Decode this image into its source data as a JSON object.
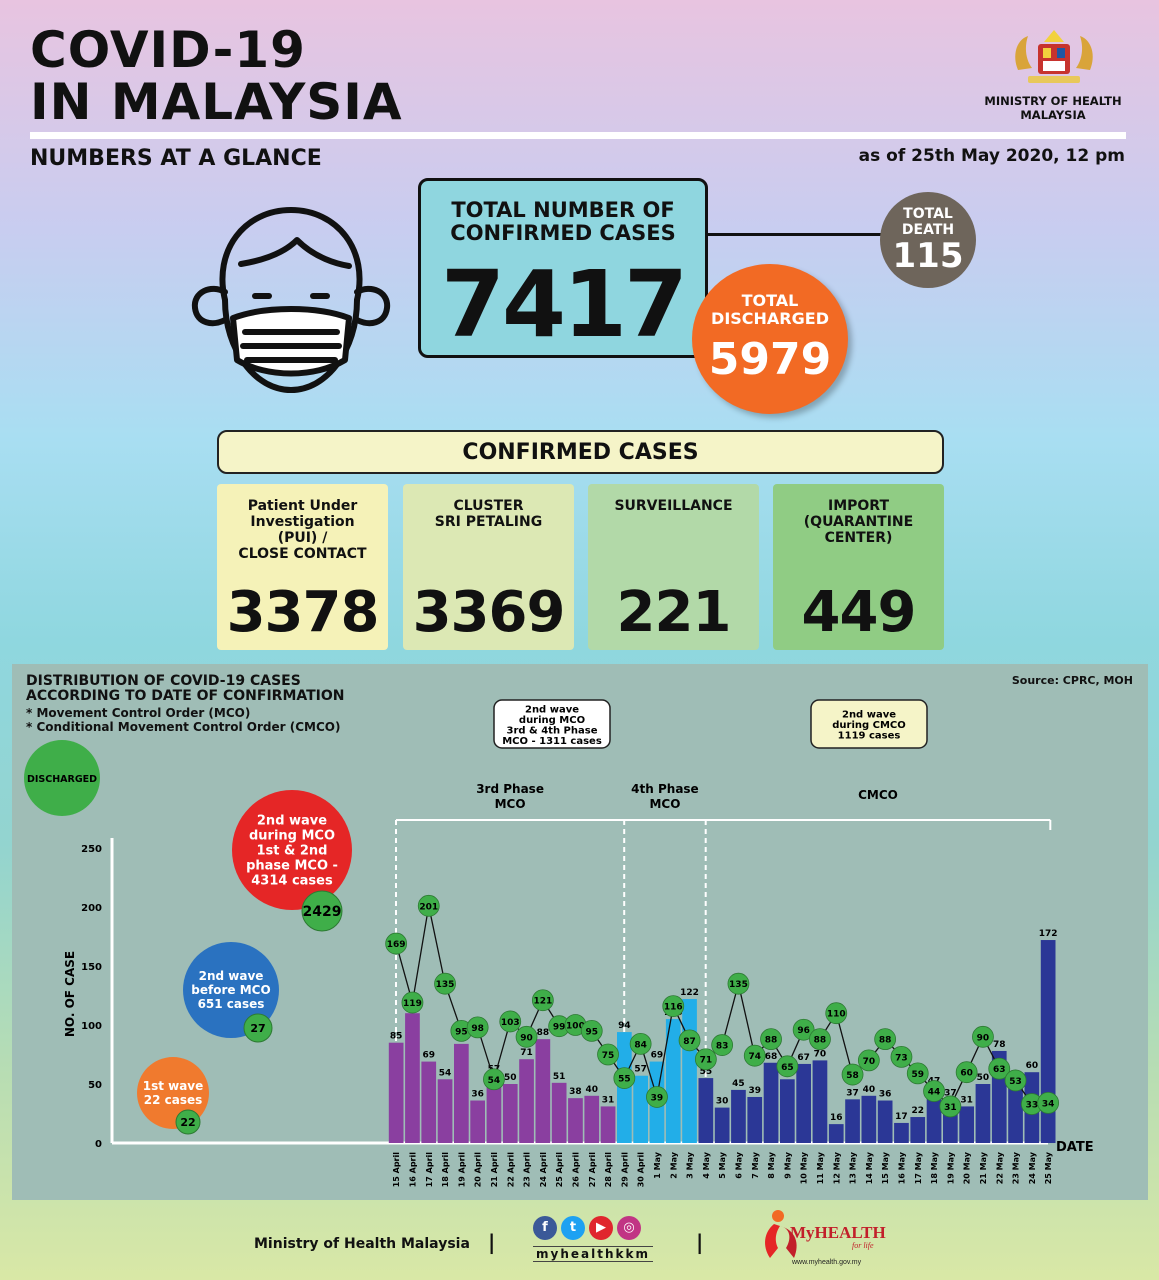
{
  "header": {
    "title_line1": "COVID-19",
    "title_line2": "IN MALAYSIA",
    "subtitle": "NUMBERS AT A GLANCE",
    "as_of": "as of 25th May 2020, 12 pm",
    "ministry_line1": "MINISTRY OF HEALTH",
    "ministry_line2": "MALAYSIA"
  },
  "icons": {
    "crest": "malaysia-coat-of-arms-icon",
    "face": "face-mask-icon"
  },
  "totals": {
    "confirmed_label_line1": "TOTAL NUMBER OF",
    "confirmed_label_line2": "CONFIRMED CASES",
    "confirmed": "7417",
    "death_label_line1": "TOTAL",
    "death_label_line2": "DEATH",
    "death": "115",
    "discharged_label_line1": "TOTAL",
    "discharged_label_line2": "DISCHARGED",
    "discharged": "5979"
  },
  "confirmed_cases": {
    "heading": "CONFIRMED CASES",
    "categories": [
      {
        "label_lines": [
          "Patient Under",
          "Investigation",
          "(PUI) /",
          "CLOSE CONTACT"
        ],
        "value": "3378",
        "color": "#f5f2b8"
      },
      {
        "label_lines": [
          "CLUSTER",
          "SRI PETALING"
        ],
        "value": "3369",
        "color": "#dce8b4"
      },
      {
        "label_lines": [
          "SURVEILLANCE"
        ],
        "value": "221",
        "color": "#b2d9a8"
      },
      {
        "label_lines": [
          "IMPORT",
          "(QUARANTINE",
          "CENTER)"
        ],
        "value": "449",
        "color": "#90cc84"
      }
    ]
  },
  "colors": {
    "phase3": "#8a3fa0",
    "phase4": "#22aee8",
    "cmco": "#2b3796",
    "discharged": "#3fae49",
    "wave2mco": "#e52626",
    "wave2before": "#2a72c0",
    "wave1": "#f07a2e"
  },
  "chart_data": {
    "type": "bar",
    "title_line1": "DISTRIBUTION OF COVID-19 CASES",
    "title_line2": "ACCORDING TO DATE OF CONFIRMATION",
    "notes": [
      "* Movement Control Order (MCO)",
      "* Conditional Movement Control Order (CMCO)"
    ],
    "source": "Source: CPRC, MOH",
    "ylabel": "NO. OF CASE",
    "xlabel": "DATE",
    "ylim": [
      0,
      250
    ],
    "yticks": [
      0,
      50,
      100,
      150,
      200,
      250
    ],
    "grid": false,
    "legend_discharged": "DISCHARGED",
    "categories": [
      "15 April",
      "16 April",
      "17 April",
      "18 April",
      "19 April",
      "20 April",
      "21 April",
      "22 April",
      "23 April",
      "24 April",
      "25 April",
      "26 April",
      "27 April",
      "28 April",
      "29 April",
      "30 April",
      "1 May",
      "2 May",
      "3 May",
      "4 May",
      "5 May",
      "6 May",
      "7 May",
      "8 May",
      "9 May",
      "10 May",
      "11 May",
      "12 May",
      "13 May",
      "14 May",
      "15 May",
      "16 May",
      "17 May",
      "18 May",
      "19 May",
      "20 May",
      "21 May",
      "22 May",
      "23 May",
      "24 May",
      "25 May"
    ],
    "series": [
      {
        "name": "Confirmed cases",
        "values": [
          85,
          110,
          69,
          54,
          84,
          36,
          57,
          50,
          71,
          88,
          51,
          38,
          40,
          31,
          94,
          57,
          69,
          105,
          122,
          55,
          30,
          45,
          39,
          68,
          54,
          67,
          70,
          16,
          37,
          40,
          36,
          17,
          22,
          47,
          37,
          31,
          50,
          78,
          48,
          60,
          172
        ]
      },
      {
        "name": "DISCHARGED",
        "values": [
          169,
          119,
          201,
          135,
          95,
          98,
          54,
          103,
          90,
          121,
          99,
          100,
          95,
          75,
          55,
          84,
          39,
          116,
          87,
          71,
          83,
          135,
          74,
          88,
          65,
          96,
          88,
          110,
          58,
          70,
          88,
          73,
          59,
          44,
          31,
          60,
          90,
          63,
          53,
          33,
          34
        ]
      }
    ],
    "phases": [
      {
        "label_line1": "3rd Phase",
        "label_line2": "MCO",
        "from": "15 April",
        "to": "28 April"
      },
      {
        "label_line1": "4th Phase",
        "label_line2": "MCO",
        "from": "29 April",
        "to": "3 May"
      },
      {
        "label_line1": "CMCO",
        "label_line2": "",
        "from": "4 May",
        "to": "25 May"
      }
    ],
    "wave_boxes": [
      {
        "lines": [
          "2nd wave",
          "during MCO",
          "3rd & 4th Phase",
          "MCO - 1311 cases"
        ]
      },
      {
        "lines": [
          "2nd wave",
          "during CMCO",
          "1119 cases"
        ]
      }
    ],
    "wave_circles": [
      {
        "lines": [
          "2nd wave",
          "during MCO",
          "1st & 2nd",
          "phase MCO -",
          "4314 cases"
        ],
        "discharged": "2429"
      },
      {
        "lines": [
          "2nd wave",
          "before MCO",
          "651 cases"
        ],
        "discharged": "27"
      },
      {
        "lines": [
          "1st wave",
          "22 cases"
        ],
        "discharged": "22"
      }
    ]
  },
  "footer": {
    "org": "Ministry of Health Malaysia",
    "handle": "myhealthkkm",
    "social_icons": [
      "facebook-icon",
      "twitter-icon",
      "youtube-icon",
      "instagram-icon"
    ],
    "brand_main": "MyHEALTH",
    "brand_tag": "for life",
    "brand_url": "www.myhealth.gov.my"
  }
}
